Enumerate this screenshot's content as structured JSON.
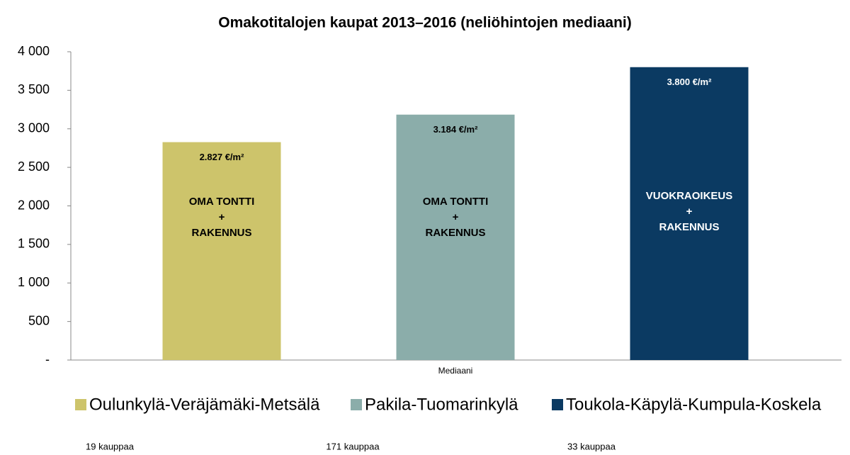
{
  "chart_data": {
    "type": "bar",
    "title": "Omakotitalojen kaupat 2013–2016  (neliöhintojen mediaani)",
    "categories": [
      "Mediaani"
    ],
    "series": [
      {
        "name": "Oulunkylä-Veräjämäki-Metsälä",
        "color": "#cdc46b",
        "values": [
          2827
        ],
        "value_labels": [
          "2.827 €/m²"
        ],
        "inner_label": [
          "OMA TONTTI",
          "+",
          "RAKENNUS"
        ],
        "count_label": "19 kauppaa"
      },
      {
        "name": "Pakila-Tuomarinkylä",
        "color": "#8badaa",
        "values": [
          3184
        ],
        "value_labels": [
          "3.184 €/m²"
        ],
        "inner_label": [
          "OMA TONTTI",
          "+",
          "RAKENNUS"
        ],
        "count_label": "171 kauppaa"
      },
      {
        "name": "Toukola-Käpylä-Kumpula-Koskela",
        "color": "#0b3a62",
        "values": [
          3800
        ],
        "value_labels": [
          "3.800 €/m²"
        ],
        "inner_label": [
          "VUOKRAOIKEUS",
          "+",
          "RAKENNUS"
        ],
        "count_label": "33 kauppaa"
      }
    ],
    "ylim": [
      0,
      4000
    ],
    "yticks": [
      {
        "value": 0,
        "label": "-"
      },
      500,
      {
        "value": 1000,
        "label": "1 000"
      },
      {
        "value": 1500,
        "label": "1 500"
      },
      {
        "value": 2000,
        "label": "2 000"
      },
      {
        "value": 2500,
        "label": "2 500"
      },
      {
        "value": 3000,
        "label": "3 000"
      },
      {
        "value": 3500,
        "label": "3 500"
      },
      {
        "value": 4000,
        "label": "4 000"
      }
    ],
    "grid": false,
    "legend": "bottom"
  }
}
